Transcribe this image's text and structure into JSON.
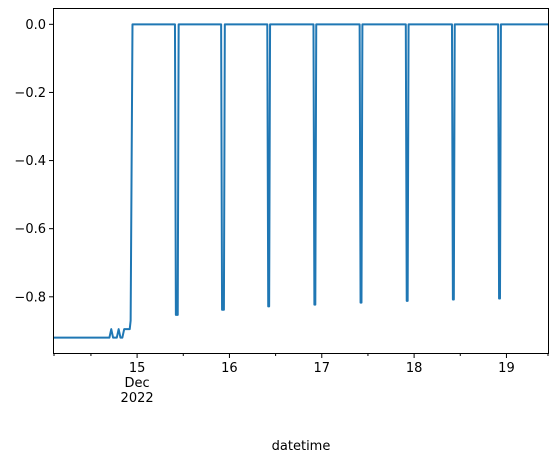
{
  "chart_data": {
    "type": "line",
    "title": "",
    "xlabel": "datetime",
    "ylabel": "",
    "xlim": [
      14.1,
      19.45
    ],
    "ylim": [
      -0.965,
      0.045
    ],
    "grid": false,
    "legend": "none",
    "line_color": "#1f77b4",
    "x_ticks": [
      {
        "value": 15,
        "label": "15",
        "sublabels": [
          "Dec",
          "2022"
        ]
      },
      {
        "value": 16,
        "label": "16"
      },
      {
        "value": 17,
        "label": "17"
      },
      {
        "value": 18,
        "label": "18"
      },
      {
        "value": 19,
        "label": "19"
      }
    ],
    "x_minor_ticks": [
      14.1,
      14.5,
      15.5,
      16.5,
      17.5,
      18.5,
      19.45
    ],
    "y_ticks": [
      {
        "value": 0.0,
        "label": "0.0"
      },
      {
        "value": -0.2,
        "label": "−0.2"
      },
      {
        "value": -0.4,
        "label": "−0.4"
      },
      {
        "value": -0.6,
        "label": "−0.6"
      },
      {
        "value": -0.8,
        "label": "−0.8"
      }
    ],
    "series": [
      {
        "x": [
          14.1,
          14.6,
          14.7,
          14.72,
          14.74,
          14.78,
          14.8,
          14.82,
          14.84,
          14.86,
          14.92,
          14.93,
          14.95,
          15.41,
          15.42,
          15.44,
          15.45,
          15.91,
          15.92,
          15.94,
          15.95,
          16.41,
          16.42,
          16.43,
          16.44,
          16.91,
          16.92,
          16.93,
          16.94,
          17.41,
          17.42,
          17.43,
          17.44,
          17.91,
          17.92,
          17.93,
          17.94,
          18.41,
          18.42,
          18.43,
          18.44,
          18.91,
          18.92,
          18.93,
          18.94,
          19.45
        ],
        "y": [
          -0.92,
          -0.92,
          -0.92,
          -0.895,
          -0.92,
          -0.92,
          -0.895,
          -0.92,
          -0.92,
          -0.895,
          -0.895,
          -0.87,
          0.0,
          0.0,
          -0.853,
          -0.853,
          0.0,
          0.0,
          -0.838,
          -0.838,
          0.0,
          0.0,
          -0.828,
          -0.828,
          0.0,
          0.0,
          -0.823,
          -0.823,
          0.0,
          0.0,
          -0.817,
          -0.817,
          0.0,
          0.0,
          -0.812,
          -0.812,
          0.0,
          0.0,
          -0.808,
          -0.808,
          0.0,
          0.0,
          -0.805,
          -0.805,
          0.0,
          0.0
        ]
      }
    ]
  }
}
